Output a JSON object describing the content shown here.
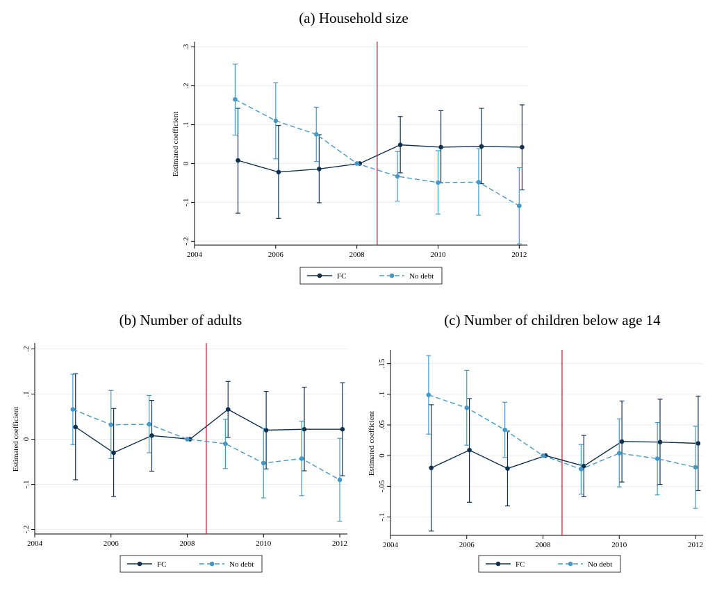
{
  "chart_data": [
    {
      "type": "line",
      "title": "(a) Household size",
      "xlabel": "",
      "ylabel": "Estimated coefficient",
      "xlim": [
        2004,
        2012.2
      ],
      "ylim": [
        -0.21,
        0.31
      ],
      "xticks": [
        2004,
        2006,
        2008,
        2010,
        2012
      ],
      "xtick_labels": [
        "2004",
        "2006",
        "2008",
        "2010",
        "2012"
      ],
      "yticks": [
        -0.2,
        -0.1,
        0,
        0.1,
        0.2,
        0.3
      ],
      "ytick_labels": [
        "-.2",
        "-.1",
        "0",
        ".1",
        ".2",
        ".3"
      ],
      "grid": true,
      "vline": 2008.5,
      "legend_position": "bottom-center",
      "series": [
        {
          "name": "FC",
          "x": [
            2005.07,
            2006.07,
            2007.07,
            2008.07,
            2009.07,
            2010.07,
            2011.07,
            2012.07
          ],
          "y": [
            0.008,
            -0.022,
            -0.014,
            0.0,
            0.048,
            0.042,
            0.044,
            0.042
          ],
          "ci_low": [
            -0.128,
            -0.141,
            -0.101,
            0.0,
            -0.024,
            -0.05,
            -0.052,
            -0.068
          ],
          "ci_high": [
            0.142,
            0.098,
            0.074,
            0.0,
            0.121,
            0.136,
            0.142,
            0.151
          ]
        },
        {
          "name": "No debt",
          "x": [
            2005.0,
            2006.0,
            2007.0,
            2008.0,
            2009.0,
            2010.0,
            2011.0,
            2012.0
          ],
          "y": [
            0.165,
            0.11,
            0.075,
            0.0,
            -0.033,
            -0.049,
            -0.048,
            -0.109
          ],
          "ci_low": [
            0.073,
            0.012,
            0.005,
            0.0,
            -0.097,
            -0.13,
            -0.133,
            -0.207
          ],
          "ci_high": [
            0.256,
            0.208,
            0.145,
            0.0,
            0.031,
            0.033,
            0.038,
            -0.011
          ]
        }
      ]
    },
    {
      "type": "line",
      "title": "(b) Number of adults",
      "xlabel": "",
      "ylabel": "Estimated coefficient",
      "xlim": [
        2004,
        2012.2
      ],
      "ylim": [
        -0.21,
        0.21
      ],
      "xticks": [
        2004,
        2006,
        2008,
        2010,
        2012
      ],
      "xtick_labels": [
        "2004",
        "2006",
        "2008",
        "2010",
        "2012"
      ],
      "yticks": [
        -0.2,
        -0.1,
        0,
        0.1,
        0.2
      ],
      "ytick_labels": [
        "-.2",
        "-.1",
        "0",
        ".1",
        ".2"
      ],
      "grid": true,
      "vline": 2008.5,
      "legend_position": "bottom-center",
      "series": [
        {
          "name": "FC",
          "x": [
            2005.07,
            2006.07,
            2007.07,
            2008.07,
            2009.07,
            2010.07,
            2011.07,
            2012.07
          ],
          "y": [
            0.027,
            -0.03,
            0.008,
            0.0,
            0.066,
            0.02,
            0.022,
            0.022
          ],
          "ci_low": [
            -0.09,
            -0.127,
            -0.071,
            0.0,
            0.004,
            -0.066,
            -0.07,
            -0.081
          ],
          "ci_high": [
            0.145,
            0.068,
            0.086,
            0.0,
            0.128,
            0.106,
            0.115,
            0.125
          ]
        },
        {
          "name": "No debt",
          "x": [
            2005.0,
            2006.0,
            2007.0,
            2008.0,
            2009.0,
            2010.0,
            2011.0,
            2012.0
          ],
          "y": [
            0.066,
            0.032,
            0.033,
            0.0,
            -0.01,
            -0.053,
            -0.043,
            -0.09
          ],
          "ci_low": [
            -0.012,
            -0.043,
            -0.03,
            0.0,
            -0.065,
            -0.13,
            -0.125,
            -0.182
          ],
          "ci_high": [
            0.144,
            0.108,
            0.097,
            0.0,
            0.044,
            0.024,
            0.04,
            0.002
          ]
        }
      ]
    },
    {
      "type": "line",
      "title": "(c) Number of children below age 14",
      "xlabel": "",
      "ylabel": "Estimated coefficient",
      "xlim": [
        2004,
        2012.2
      ],
      "ylim": [
        -0.13,
        0.17
      ],
      "xticks": [
        2004,
        2006,
        2008,
        2010,
        2012
      ],
      "xtick_labels": [
        "2004",
        "2006",
        "2008",
        "2010",
        "2012"
      ],
      "yticks": [
        -0.1,
        -0.05,
        0,
        0.05,
        0.1,
        0.15
      ],
      "ytick_labels": [
        "-.1",
        "-.05",
        "0",
        ".05",
        ".1",
        ".15"
      ],
      "grid": true,
      "vline": 2008.5,
      "legend_position": "bottom-center",
      "series": [
        {
          "name": "FC",
          "x": [
            2005.07,
            2006.07,
            2007.07,
            2008.07,
            2009.07,
            2010.07,
            2011.07,
            2012.07
          ],
          "y": [
            -0.02,
            0.009,
            -0.021,
            0.0,
            -0.017,
            0.023,
            0.022,
            0.02
          ],
          "ci_low": [
            -0.123,
            -0.076,
            -0.082,
            0.0,
            -0.067,
            -0.043,
            -0.047,
            -0.057
          ],
          "ci_high": [
            0.083,
            0.093,
            0.04,
            0.0,
            0.033,
            0.089,
            0.092,
            0.097
          ]
        },
        {
          "name": "No debt",
          "x": [
            2005.0,
            2006.0,
            2007.0,
            2008.0,
            2009.0,
            2010.0,
            2011.0,
            2012.0
          ],
          "y": [
            0.099,
            0.078,
            0.042,
            0.0,
            -0.022,
            0.004,
            -0.005,
            -0.019
          ],
          "ci_low": [
            0.035,
            0.017,
            -0.003,
            0.0,
            -0.063,
            -0.051,
            -0.064,
            -0.086
          ],
          "ci_high": [
            0.163,
            0.139,
            0.087,
            0.0,
            0.018,
            0.06,
            0.054,
            0.048
          ]
        }
      ]
    }
  ],
  "colors": {
    "fc": "#10304f",
    "nodebt": "#4499c8",
    "vline": "#c8102e",
    "grid": "#ececec"
  }
}
